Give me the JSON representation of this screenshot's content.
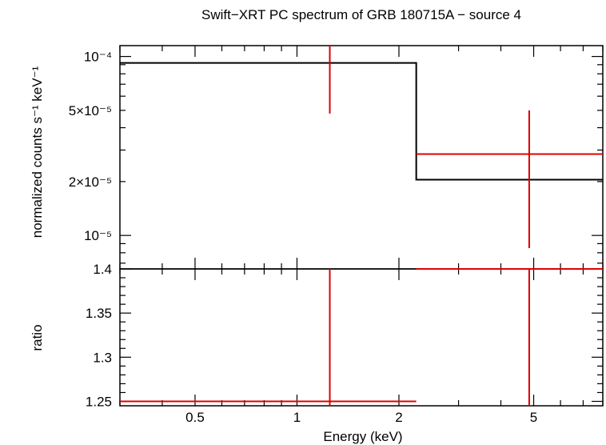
{
  "chart_data": [
    {
      "panel": "spectrum",
      "type": "line",
      "title": "Swift−XRT PC spectrum of GRB 180715A − source 4",
      "xlabel": "",
      "ylabel": "normalized counts s⁻¹ keV⁻¹",
      "x_scale": "log",
      "y_scale": "log",
      "xlim": [
        0.3,
        8.0
      ],
      "ylim": [
        6.5e-06,
        0.000115
      ],
      "y_ticks": [
        {
          "value": 0.0001,
          "label": "10⁻⁴"
        },
        {
          "value": 5e-05,
          "label": "5×10⁻⁵"
        },
        {
          "value": 2e-05,
          "label": "2×10⁻⁵"
        },
        {
          "value": 1e-05,
          "label": "10⁻⁵"
        }
      ],
      "model_steps": [
        {
          "x_lo": 0.3,
          "x_hi": 2.25,
          "y": 9.2e-05
        },
        {
          "x_lo": 2.25,
          "x_hi": 8.0,
          "y": 2.05e-05
        }
      ],
      "series": [
        {
          "points": [
            {
              "x": 1.25,
              "x_lo": 1.25,
              "x_hi": 1.25,
              "y": 0.000115,
              "y_lo": 4.8e-05,
              "y_hi": 0.000115
            },
            {
              "x": 4.85,
              "x_lo": 2.25,
              "x_hi": 8.0,
              "y": 2.85e-05,
              "y_lo": 8.5e-06,
              "y_hi": 5e-05
            }
          ]
        }
      ]
    },
    {
      "panel": "ratio",
      "type": "line",
      "xlabel": "Energy (keV)",
      "ylabel": "ratio",
      "x_scale": "log",
      "y_scale": "linear",
      "xlim": [
        0.3,
        8.0
      ],
      "ylim": [
        1.245,
        1.4
      ],
      "x_ticks": [
        {
          "value": 0.5,
          "label": "0.5"
        },
        {
          "value": 1,
          "label": "1"
        },
        {
          "value": 2,
          "label": "2"
        },
        {
          "value": 5,
          "label": "5"
        }
      ],
      "y_ticks": [
        {
          "value": 1.25,
          "label": "1.25"
        },
        {
          "value": 1.3,
          "label": "1.3"
        },
        {
          "value": 1.35,
          "label": "1.35"
        },
        {
          "value": 1.4,
          "label": "1.4"
        }
      ],
      "series": [
        {
          "points": [
            {
              "x": 1.25,
              "x_lo": 0.3,
              "x_hi": 2.25,
              "y": 1.25,
              "y_lo": 1.245,
              "y_hi": 1.4
            },
            {
              "x": 4.85,
              "x_lo": 2.25,
              "x_hi": 8.0,
              "y": 1.4,
              "y_lo": 1.245,
              "y_hi": 1.4
            }
          ]
        }
      ]
    }
  ]
}
